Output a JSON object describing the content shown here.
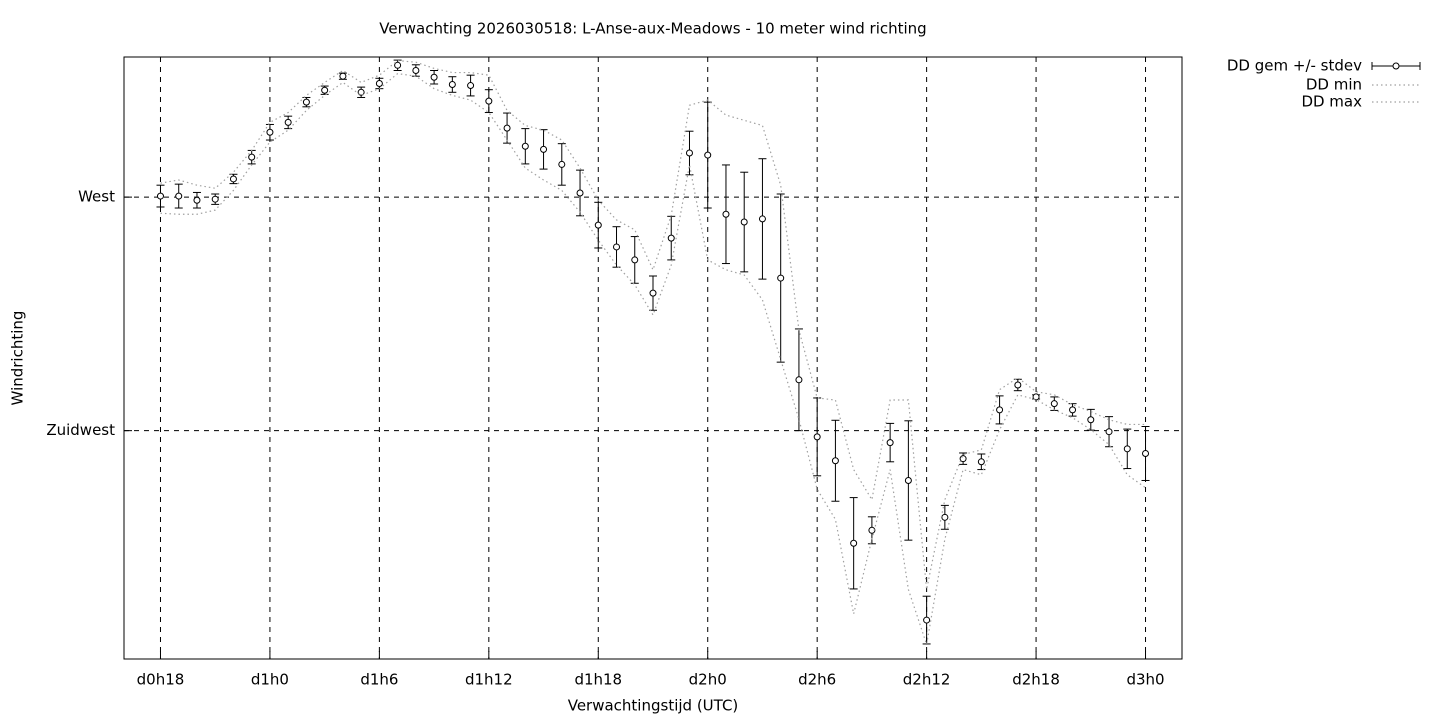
{
  "chart_data": {
    "type": "errorbar",
    "title": "Verwachting 2026030518: L-Anse-aux-Meadows - 10 meter wind richting",
    "x_label": "Verwachtingstijd (UTC)",
    "y_label": "Windrichting",
    "x": [
      18,
      19,
      20,
      21,
      22,
      23,
      24,
      25,
      26,
      27,
      28,
      29,
      30,
      31,
      32,
      33,
      34,
      35,
      36,
      37,
      38,
      39,
      40,
      41,
      42,
      43,
      44,
      45,
      46,
      47,
      48,
      49,
      50,
      51,
      52,
      53,
      54,
      55,
      56,
      57,
      58,
      59,
      60,
      61,
      62,
      63,
      64,
      65,
      66,
      67,
      68,
      69,
      70,
      71,
      72
    ],
    "xlim": [
      16,
      74
    ],
    "xticks": [
      {
        "value": 18,
        "label": "d0h18"
      },
      {
        "value": 24,
        "label": "d1h0"
      },
      {
        "value": 30,
        "label": "d1h6"
      },
      {
        "value": 36,
        "label": "d1h12"
      },
      {
        "value": 42,
        "label": "d1h18"
      },
      {
        "value": 48,
        "label": "d2h0"
      },
      {
        "value": 54,
        "label": "d2h6"
      },
      {
        "value": 60,
        "label": "d2h12"
      },
      {
        "value": 66,
        "label": "d2h18"
      },
      {
        "value": 72,
        "label": "d3h0"
      }
    ],
    "ylim": [
      181,
      297
    ],
    "yticks": [
      {
        "value": 225,
        "label": "Zuidwest"
      },
      {
        "value": 270,
        "label": "West"
      }
    ],
    "grid": true,
    "legend": "outside-top-right",
    "series": [
      {
        "name": "DD gem +/- stdev",
        "style": "errorbar",
        "color": "#000000",
        "values": [
          270.2,
          270.2,
          269.4,
          269.6,
          273.5,
          277.7,
          282.5,
          284.4,
          288.3,
          290.6,
          293.3,
          290.2,
          291.9,
          295.4,
          294.4,
          293.1,
          291.7,
          291.5,
          288.5,
          283.3,
          279.8,
          279.2,
          276.3,
          270.8,
          264.6,
          260.4,
          257.9,
          251.5,
          262.1,
          278.5,
          278.1,
          266.7,
          265.2,
          265.8,
          254.4,
          234.8,
          223.8,
          219.2,
          203.3,
          205.8,
          222.7,
          215.4,
          188.5,
          208.3,
          219.6,
          219.0,
          229.0,
          233.8,
          231.5,
          230.2,
          229.0,
          227.1,
          224.8,
          221.5,
          220.6
        ],
        "errors": [
          2.1,
          2.3,
          1.5,
          1.0,
          0.9,
          1.3,
          1.5,
          1.2,
          0.9,
          0.8,
          0.6,
          1.0,
          1.0,
          1.0,
          1.1,
          1.3,
          1.5,
          2.0,
          2.2,
          2.9,
          3.4,
          3.8,
          4.0,
          4.4,
          4.4,
          3.9,
          4.5,
          3.3,
          4.2,
          4.2,
          10.2,
          9.5,
          9.6,
          11.6,
          16.2,
          9.8,
          7.5,
          7.8,
          8.8,
          2.6,
          3.7,
          11.5,
          4.6,
          2.3,
          1.1,
          1.5,
          2.7,
          1.1,
          0.4,
          1.3,
          1.2,
          2.0,
          2.9,
          3.8,
          5.2
        ]
      },
      {
        "name": "DD min",
        "style": "dotted",
        "color": "#a0a0a0",
        "values": [
          266.9,
          266.7,
          266.7,
          267.5,
          271.3,
          276.2,
          280.6,
          282.9,
          286.7,
          289.6,
          292.1,
          289.6,
          290.9,
          293.8,
          293.3,
          290.9,
          289.6,
          288.7,
          286.3,
          281.0,
          275.6,
          273.3,
          271.3,
          267.1,
          261.7,
          256.9,
          253.1,
          247.3,
          256.9,
          276.2,
          257.9,
          256.0,
          255.0,
          250.2,
          238.7,
          227.2,
          213.7,
          207.9,
          189.7,
          204.1,
          217.5,
          194.4,
          183.8,
          204.1,
          217.5,
          216.5,
          225.2,
          231.9,
          231.0,
          229.0,
          227.5,
          225.2,
          222.3,
          216.5,
          214.0
        ]
      },
      {
        "name": "DD max",
        "style": "dotted",
        "color": "#a0a0a0",
        "values": [
          272.7,
          273.3,
          272.3,
          271.7,
          274.8,
          279.0,
          284.4,
          286.3,
          289.6,
          292.1,
          294.4,
          292.1,
          293.5,
          296.3,
          296.0,
          294.8,
          294.0,
          294.0,
          293.5,
          286.7,
          283.8,
          282.9,
          281.0,
          275.6,
          269.4,
          265.6,
          263.7,
          256.0,
          266.5,
          287.7,
          288.7,
          285.8,
          284.8,
          283.8,
          272.3,
          244.4,
          231.3,
          230.9,
          217.5,
          211.7,
          230.9,
          230.9,
          194.4,
          211.7,
          220.4,
          221.3,
          232.9,
          235.2,
          232.5,
          231.9,
          230.0,
          228.7,
          227.1,
          226.2,
          226.2
        ]
      }
    ]
  }
}
